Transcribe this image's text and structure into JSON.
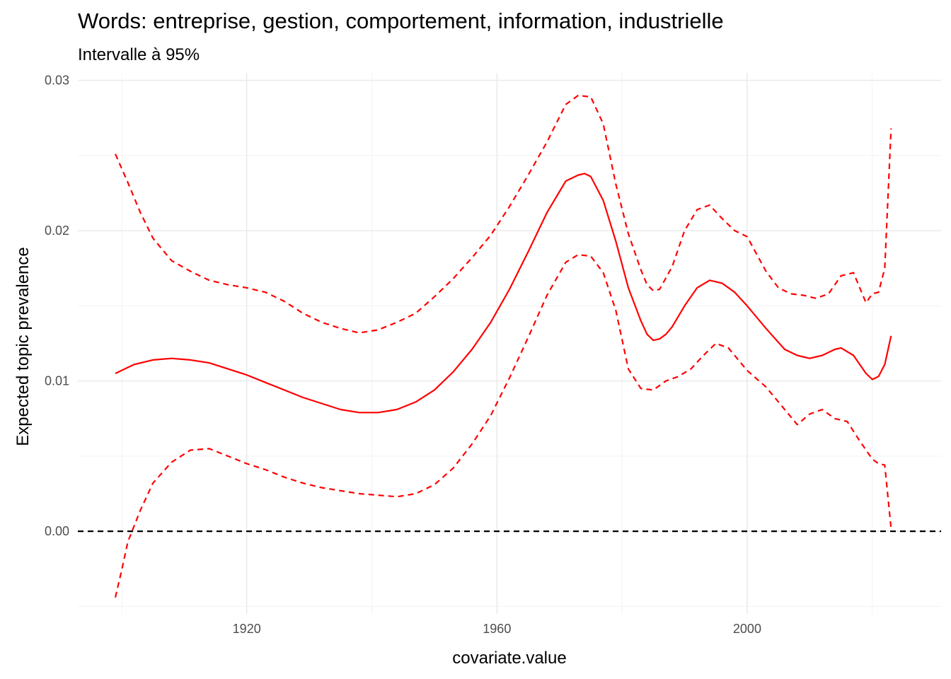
{
  "chart_data": {
    "type": "line",
    "title": "Words: entreprise, gestion, comportement, information, industrielle",
    "subtitle": "Intervalle à 95%",
    "xlabel": "covariate.value",
    "ylabel": "Expected topic prevalence",
    "xlim": [
      1893,
      2031
    ],
    "ylim": [
      -0.0055,
      0.0305
    ],
    "x_ticks": [
      1920,
      1960,
      2000
    ],
    "x_tick_labels": [
      "1920",
      "1960",
      "2000"
    ],
    "y_ticks": [
      0.0,
      0.01,
      0.02,
      0.03
    ],
    "y_tick_labels": [
      "0.00",
      "0.01",
      "0.02",
      "0.03"
    ],
    "grid": true,
    "reference_line": {
      "y": 0,
      "style": "dashed",
      "color": "#000000"
    },
    "colors": {
      "estimate": "#ff0000",
      "interval": "#ff0000"
    },
    "series": [
      {
        "role": "estimate",
        "style": "solid",
        "x": [
          1899,
          1902,
          1905,
          1908,
          1911,
          1914,
          1917,
          1920,
          1923,
          1926,
          1929,
          1932,
          1935,
          1938,
          1941,
          1944,
          1947,
          1950,
          1953,
          1956,
          1959,
          1962,
          1965,
          1968,
          1971,
          1973,
          1974,
          1975,
          1977,
          1979,
          1981,
          1983,
          1984,
          1985,
          1986,
          1987,
          1988,
          1990,
          1992,
          1994,
          1996,
          1998,
          2000,
          2003,
          2006,
          2008,
          2010,
          2012,
          2014,
          2015,
          2017,
          2019,
          2020,
          2021,
          2022,
          2023
        ],
        "y": [
          0.0105,
          0.0111,
          0.0114,
          0.0115,
          0.0114,
          0.0112,
          0.0108,
          0.0104,
          0.0099,
          0.0094,
          0.0089,
          0.0085,
          0.0081,
          0.0079,
          0.0079,
          0.0081,
          0.0086,
          0.0094,
          0.0106,
          0.0121,
          0.0139,
          0.0161,
          0.0186,
          0.0212,
          0.0233,
          0.0237,
          0.0238,
          0.0236,
          0.022,
          0.0193,
          0.0162,
          0.014,
          0.0131,
          0.0127,
          0.0128,
          0.0131,
          0.0136,
          0.015,
          0.0162,
          0.0167,
          0.0165,
          0.0159,
          0.015,
          0.0135,
          0.0121,
          0.0117,
          0.0115,
          0.0117,
          0.0121,
          0.0122,
          0.0117,
          0.0105,
          0.0101,
          0.0103,
          0.0111,
          0.013
        ]
      },
      {
        "role": "upper",
        "style": "dashed",
        "x": [
          1899,
          1901,
          1903,
          1905,
          1908,
          1911,
          1914,
          1917,
          1920,
          1923,
          1926,
          1929,
          1932,
          1935,
          1938,
          1941,
          1944,
          1947,
          1950,
          1953,
          1956,
          1959,
          1962,
          1965,
          1968,
          1971,
          1973,
          1975,
          1977,
          1979,
          1981,
          1983,
          1984,
          1985,
          1986,
          1988,
          1990,
          1992,
          1994,
          1996,
          1998,
          2000,
          2003,
          2005,
          2007,
          2009,
          2011,
          2013,
          2015,
          2017,
          2019,
          2020,
          2021,
          2022,
          2023
        ],
        "y": [
          0.0251,
          0.0232,
          0.0212,
          0.0195,
          0.018,
          0.0173,
          0.0167,
          0.0164,
          0.0162,
          0.0159,
          0.0153,
          0.0145,
          0.0139,
          0.0135,
          0.0132,
          0.0134,
          0.0139,
          0.0145,
          0.0156,
          0.0168,
          0.0182,
          0.0197,
          0.0216,
          0.0237,
          0.0259,
          0.0284,
          0.029,
          0.0289,
          0.0271,
          0.0231,
          0.0198,
          0.0174,
          0.0164,
          0.016,
          0.0161,
          0.0176,
          0.02,
          0.0214,
          0.0217,
          0.0208,
          0.02,
          0.0196,
          0.0173,
          0.0162,
          0.0158,
          0.0157,
          0.0155,
          0.0158,
          0.017,
          0.0172,
          0.0152,
          0.0158,
          0.0159,
          0.0175,
          0.0268
        ]
      },
      {
        "role": "lower",
        "style": "dashed",
        "x": [
          1899,
          1900,
          1901,
          1903,
          1905,
          1908,
          1911,
          1914,
          1917,
          1920,
          1923,
          1926,
          1929,
          1932,
          1935,
          1938,
          1941,
          1944,
          1947,
          1950,
          1953,
          1956,
          1959,
          1962,
          1965,
          1968,
          1971,
          1973,
          1975,
          1977,
          1979,
          1981,
          1983,
          1985,
          1987,
          1989,
          1991,
          1993,
          1995,
          1997,
          2000,
          2003,
          2006,
          2008,
          2010,
          2012,
          2014,
          2016,
          2018,
          2020,
          2021,
          2022,
          2023
        ],
        "y": [
          -0.0044,
          -0.0026,
          -0.0007,
          0.0014,
          0.0032,
          0.0046,
          0.0054,
          0.0055,
          0.005,
          0.0045,
          0.0041,
          0.0036,
          0.0032,
          0.0029,
          0.0027,
          0.0025,
          0.0024,
          0.0023,
          0.0025,
          0.0031,
          0.0042,
          0.0058,
          0.0077,
          0.0102,
          0.0129,
          0.0157,
          0.0179,
          0.0184,
          0.0183,
          0.0172,
          0.0147,
          0.0108,
          0.0095,
          0.0094,
          0.01,
          0.0103,
          0.0108,
          0.0117,
          0.0125,
          0.0122,
          0.0107,
          0.0096,
          0.0081,
          0.0071,
          0.0078,
          0.0081,
          0.0075,
          0.0073,
          0.006,
          0.0048,
          0.0045,
          0.0044,
          0.0002
        ]
      }
    ]
  }
}
